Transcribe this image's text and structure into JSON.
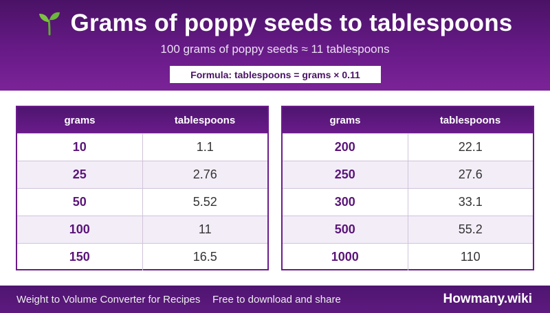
{
  "header": {
    "title": "Grams of poppy seeds to tablespoons",
    "subtitle": "100 grams of poppy seeds ≈ 11 tablespoons",
    "formula": "Formula: tablespoons = grams × 0.11",
    "icon": "sprout-icon"
  },
  "tables": [
    {
      "col_grams": "grams",
      "col_tbsp": "tablespoons",
      "rows": [
        {
          "grams": "10",
          "tbsp": "1.1"
        },
        {
          "grams": "25",
          "tbsp": "2.76"
        },
        {
          "grams": "50",
          "tbsp": "5.52"
        },
        {
          "grams": "100",
          "tbsp": "11"
        },
        {
          "grams": "150",
          "tbsp": "16.5"
        }
      ]
    },
    {
      "col_grams": "grams",
      "col_tbsp": "tablespoons",
      "rows": [
        {
          "grams": "200",
          "tbsp": "22.1"
        },
        {
          "grams": "250",
          "tbsp": "27.6"
        },
        {
          "grams": "300",
          "tbsp": "33.1"
        },
        {
          "grams": "500",
          "tbsp": "55.2"
        },
        {
          "grams": "1000",
          "tbsp": "110"
        }
      ]
    }
  ],
  "footer": {
    "left_text": "Weight to Volume Converter for Recipes",
    "middle_text": "Free to download and share",
    "brand": "Howmany.wiki"
  },
  "colors": {
    "primary": "#6a1b8a",
    "dark": "#4a1266",
    "row_alt": "#f3edf8"
  }
}
